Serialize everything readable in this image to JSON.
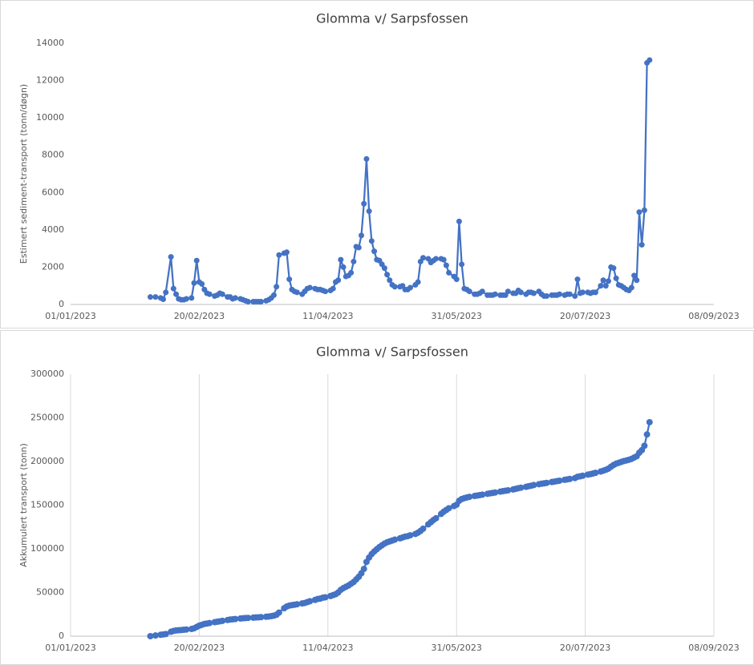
{
  "chart_data": [
    {
      "type": "line",
      "title": "Glomma v/ Sarpsfossen",
      "y_label": "Estimert sediment-transport (tonn/døgn)",
      "color": "#4472c4",
      "grid": false,
      "xlim": [
        "2023-01-01",
        "2023-09-08"
      ],
      "xticks": [
        {
          "value": "2023-01-01",
          "label": "01/01/2023"
        },
        {
          "value": "2023-02-20",
          "label": "20/02/2023"
        },
        {
          "value": "2023-04-11",
          "label": "11/04/2023"
        },
        {
          "value": "2023-05-31",
          "label": "31/05/2023"
        },
        {
          "value": "2023-07-20",
          "label": "20/07/2023"
        },
        {
          "value": "2023-09-08",
          "label": "08/09/2023"
        }
      ],
      "ylim": [
        0,
        14000
      ],
      "yticks": [
        0,
        2000,
        4000,
        6000,
        8000,
        10000,
        12000,
        14000
      ],
      "x": [
        "2023-02-01",
        "2023-02-03",
        "2023-02-05",
        "2023-02-06",
        "2023-02-07",
        "2023-02-09",
        "2023-02-10",
        "2023-02-11",
        "2023-02-12",
        "2023-02-13",
        "2023-02-14",
        "2023-02-15",
        "2023-02-17",
        "2023-02-18",
        "2023-02-19",
        "2023-02-20",
        "2023-02-21",
        "2023-02-22",
        "2023-02-23",
        "2023-02-24",
        "2023-02-26",
        "2023-02-27",
        "2023-02-28",
        "2023-03-01",
        "2023-03-03",
        "2023-03-04",
        "2023-03-05",
        "2023-03-06",
        "2023-03-08",
        "2023-03-09",
        "2023-03-10",
        "2023-03-11",
        "2023-03-13",
        "2023-03-14",
        "2023-03-15",
        "2023-03-16",
        "2023-03-18",
        "2023-03-19",
        "2023-03-20",
        "2023-03-21",
        "2023-03-22",
        "2023-03-23",
        "2023-03-25",
        "2023-03-26",
        "2023-03-27",
        "2023-03-28",
        "2023-03-29",
        "2023-03-30",
        "2023-04-01",
        "2023-04-02",
        "2023-04-03",
        "2023-04-04",
        "2023-04-06",
        "2023-04-07",
        "2023-04-08",
        "2023-04-09",
        "2023-04-10",
        "2023-04-12",
        "2023-04-13",
        "2023-04-14",
        "2023-04-15",
        "2023-04-16",
        "2023-04-17",
        "2023-04-18",
        "2023-04-19",
        "2023-04-20",
        "2023-04-21",
        "2023-04-22",
        "2023-04-23",
        "2023-04-24",
        "2023-04-25",
        "2023-04-26",
        "2023-04-27",
        "2023-04-28",
        "2023-04-29",
        "2023-04-30",
        "2023-05-01",
        "2023-05-02",
        "2023-05-03",
        "2023-05-04",
        "2023-05-05",
        "2023-05-06",
        "2023-05-07",
        "2023-05-09",
        "2023-05-10",
        "2023-05-11",
        "2023-05-12",
        "2023-05-13",
        "2023-05-15",
        "2023-05-16",
        "2023-05-17",
        "2023-05-18",
        "2023-05-20",
        "2023-05-21",
        "2023-05-22",
        "2023-05-23",
        "2023-05-25",
        "2023-05-26",
        "2023-05-27",
        "2023-05-28",
        "2023-05-30",
        "2023-05-31",
        "2023-06-01",
        "2023-06-02",
        "2023-06-03",
        "2023-06-04",
        "2023-06-05",
        "2023-06-07",
        "2023-06-08",
        "2023-06-09",
        "2023-06-10",
        "2023-06-12",
        "2023-06-13",
        "2023-06-14",
        "2023-06-15",
        "2023-06-17",
        "2023-06-18",
        "2023-06-19",
        "2023-06-20",
        "2023-06-22",
        "2023-06-23",
        "2023-06-24",
        "2023-06-25",
        "2023-06-27",
        "2023-06-28",
        "2023-06-29",
        "2023-06-30",
        "2023-07-02",
        "2023-07-03",
        "2023-07-04",
        "2023-07-05",
        "2023-07-07",
        "2023-07-08",
        "2023-07-09",
        "2023-07-10",
        "2023-07-12",
        "2023-07-13",
        "2023-07-14",
        "2023-07-16",
        "2023-07-17",
        "2023-07-18",
        "2023-07-19",
        "2023-07-21",
        "2023-07-22",
        "2023-07-23",
        "2023-07-24",
        "2023-07-26",
        "2023-07-27",
        "2023-07-28",
        "2023-07-29",
        "2023-07-30",
        "2023-07-31",
        "2023-08-01",
        "2023-08-02",
        "2023-08-03",
        "2023-08-04",
        "2023-08-05",
        "2023-08-06",
        "2023-08-07",
        "2023-08-08",
        "2023-08-09",
        "2023-08-10",
        "2023-08-11",
        "2023-08-12",
        "2023-08-13",
        "2023-08-14"
      ],
      "values": [
        400,
        400,
        350,
        280,
        650,
        2550,
        850,
        550,
        300,
        250,
        250,
        300,
        350,
        1150,
        2350,
        1200,
        1100,
        800,
        600,
        550,
        450,
        500,
        600,
        550,
        400,
        400,
        300,
        350,
        300,
        250,
        200,
        150,
        150,
        150,
        150,
        150,
        200,
        250,
        350,
        500,
        950,
        2650,
        2750,
        2800,
        1350,
        800,
        700,
        650,
        550,
        700,
        850,
        900,
        850,
        800,
        800,
        750,
        700,
        750,
        850,
        1200,
        1300,
        2400,
        2000,
        1500,
        1550,
        1700,
        2300,
        3100,
        3050,
        3700,
        5400,
        7800,
        5000,
        3400,
        2850,
        2400,
        2350,
        2150,
        1950,
        1600,
        1300,
        1050,
        950,
        950,
        1000,
        800,
        800,
        900,
        1050,
        1200,
        2300,
        2500,
        2450,
        2250,
        2350,
        2450,
        2450,
        2400,
        2100,
        1700,
        1500,
        1350,
        4450,
        2150,
        850,
        800,
        700,
        550,
        550,
        600,
        700,
        500,
        500,
        500,
        550,
        500,
        500,
        500,
        700,
        600,
        600,
        750,
        650,
        550,
        650,
        650,
        600,
        700,
        550,
        450,
        450,
        500,
        500,
        500,
        550,
        500,
        550,
        550,
        450,
        1350,
        600,
        650,
        650,
        600,
        650,
        650,
        1000,
        1300,
        1000,
        1250,
        2000,
        1950,
        1400,
        1050,
        1000,
        900,
        800,
        750,
        900,
        1550,
        1300,
        4950,
        3200,
        5050,
        12950,
        13100
      ]
    },
    {
      "type": "line",
      "title": "Glomma v/ Sarpsfossen",
      "y_label": "Akkumulert transport (tonn)",
      "color": "#4472c4",
      "grid": true,
      "xlim": [
        "2023-01-01",
        "2023-09-08"
      ],
      "xticks": [
        {
          "value": "2023-01-01",
          "label": "01/01/2023"
        },
        {
          "value": "2023-02-20",
          "label": "20/02/2023"
        },
        {
          "value": "2023-04-11",
          "label": "11/04/2023"
        },
        {
          "value": "2023-05-31",
          "label": "31/05/2023"
        },
        {
          "value": "2023-07-20",
          "label": "20/07/2023"
        },
        {
          "value": "2023-09-08",
          "label": "08/09/2023"
        }
      ],
      "ylim": [
        0,
        300000
      ],
      "yticks": [
        0,
        50000,
        100000,
        150000,
        200000,
        250000,
        300000
      ],
      "x": [
        "2023-02-01",
        "2023-02-03",
        "2023-02-05",
        "2023-02-06",
        "2023-02-07",
        "2023-02-09",
        "2023-02-10",
        "2023-02-11",
        "2023-02-12",
        "2023-02-13",
        "2023-02-14",
        "2023-02-15",
        "2023-02-17",
        "2023-02-18",
        "2023-02-19",
        "2023-02-20",
        "2023-02-21",
        "2023-02-22",
        "2023-02-23",
        "2023-02-24",
        "2023-02-26",
        "2023-02-27",
        "2023-02-28",
        "2023-03-01",
        "2023-03-03",
        "2023-03-04",
        "2023-03-05",
        "2023-03-06",
        "2023-03-08",
        "2023-03-09",
        "2023-03-10",
        "2023-03-11",
        "2023-03-13",
        "2023-03-14",
        "2023-03-15",
        "2023-03-16",
        "2023-03-18",
        "2023-03-19",
        "2023-03-20",
        "2023-03-21",
        "2023-03-22",
        "2023-03-23",
        "2023-03-25",
        "2023-03-26",
        "2023-03-27",
        "2023-03-28",
        "2023-03-29",
        "2023-03-30",
        "2023-04-01",
        "2023-04-02",
        "2023-04-03",
        "2023-04-04",
        "2023-04-06",
        "2023-04-07",
        "2023-04-08",
        "2023-04-09",
        "2023-04-10",
        "2023-04-12",
        "2023-04-13",
        "2023-04-14",
        "2023-04-15",
        "2023-04-16",
        "2023-04-17",
        "2023-04-18",
        "2023-04-19",
        "2023-04-20",
        "2023-04-21",
        "2023-04-22",
        "2023-04-23",
        "2023-04-24",
        "2023-04-25",
        "2023-04-26",
        "2023-04-27",
        "2023-04-28",
        "2023-04-29",
        "2023-04-30",
        "2023-05-01",
        "2023-05-02",
        "2023-05-03",
        "2023-05-04",
        "2023-05-05",
        "2023-05-06",
        "2023-05-07",
        "2023-05-09",
        "2023-05-10",
        "2023-05-11",
        "2023-05-12",
        "2023-05-13",
        "2023-05-15",
        "2023-05-16",
        "2023-05-17",
        "2023-05-18",
        "2023-05-20",
        "2023-05-21",
        "2023-05-22",
        "2023-05-23",
        "2023-05-25",
        "2023-05-26",
        "2023-05-27",
        "2023-05-28",
        "2023-05-30",
        "2023-05-31",
        "2023-06-01",
        "2023-06-02",
        "2023-06-03",
        "2023-06-04",
        "2023-06-05",
        "2023-06-07",
        "2023-06-08",
        "2023-06-09",
        "2023-06-10",
        "2023-06-12",
        "2023-06-13",
        "2023-06-14",
        "2023-06-15",
        "2023-06-17",
        "2023-06-18",
        "2023-06-19",
        "2023-06-20",
        "2023-06-22",
        "2023-06-23",
        "2023-06-24",
        "2023-06-25",
        "2023-06-27",
        "2023-06-28",
        "2023-06-29",
        "2023-06-30",
        "2023-07-02",
        "2023-07-03",
        "2023-07-04",
        "2023-07-05",
        "2023-07-07",
        "2023-07-08",
        "2023-07-09",
        "2023-07-10",
        "2023-07-12",
        "2023-07-13",
        "2023-07-14",
        "2023-07-16",
        "2023-07-17",
        "2023-07-18",
        "2023-07-19",
        "2023-07-21",
        "2023-07-22",
        "2023-07-23",
        "2023-07-24",
        "2023-07-26",
        "2023-07-27",
        "2023-07-28",
        "2023-07-29",
        "2023-07-30",
        "2023-07-31",
        "2023-08-01",
        "2023-08-02",
        "2023-08-03",
        "2023-08-04",
        "2023-08-05",
        "2023-08-06",
        "2023-08-07",
        "2023-08-08",
        "2023-08-09",
        "2023-08-10",
        "2023-08-11",
        "2023-08-12",
        "2023-08-13",
        "2023-08-14"
      ],
      "values": [
        0,
        800,
        1600,
        2000,
        2400,
        5000,
        6000,
        6500,
        6800,
        7000,
        7300,
        7600,
        8200,
        9000,
        10500,
        12000,
        13000,
        14000,
        14500,
        15000,
        16000,
        16500,
        17000,
        17500,
        18500,
        19000,
        19300,
        19600,
        20200,
        20500,
        20700,
        20900,
        21200,
        21400,
        21600,
        21800,
        22200,
        22500,
        22900,
        23500,
        24500,
        27000,
        32000,
        34000,
        35000,
        35500,
        36000,
        36500,
        37500,
        38000,
        39000,
        40000,
        41500,
        42500,
        43000,
        44000,
        44500,
        46000,
        47000,
        48000,
        50000,
        53000,
        55000,
        56500,
        58000,
        60000,
        62000,
        65000,
        68000,
        72000,
        77000,
        85000,
        90000,
        94000,
        97000,
        99500,
        102000,
        104000,
        106000,
        107500,
        108500,
        109500,
        110500,
        112000,
        113000,
        114000,
        114500,
        115500,
        117000,
        118500,
        120500,
        123000,
        128000,
        130500,
        133000,
        135000,
        140000,
        142500,
        144500,
        146500,
        149000,
        150500,
        155000,
        157000,
        158000,
        158800,
        159500,
        160500,
        161000,
        161500,
        162000,
        163000,
        163500,
        164000,
        164500,
        165500,
        166000,
        166500,
        167000,
        168000,
        168700,
        169400,
        170000,
        171000,
        171700,
        172300,
        173000,
        174000,
        174500,
        175000,
        175500,
        176500,
        177000,
        177500,
        178000,
        179000,
        179500,
        180000,
        181000,
        182500,
        183000,
        183700,
        185000,
        185500,
        186200,
        187000,
        188500,
        189500,
        190500,
        191800,
        194000,
        196000,
        197500,
        198500,
        199500,
        200500,
        201200,
        202000,
        203000,
        204500,
        206000,
        210000,
        213000,
        218000,
        231000,
        245000
      ]
    }
  ]
}
